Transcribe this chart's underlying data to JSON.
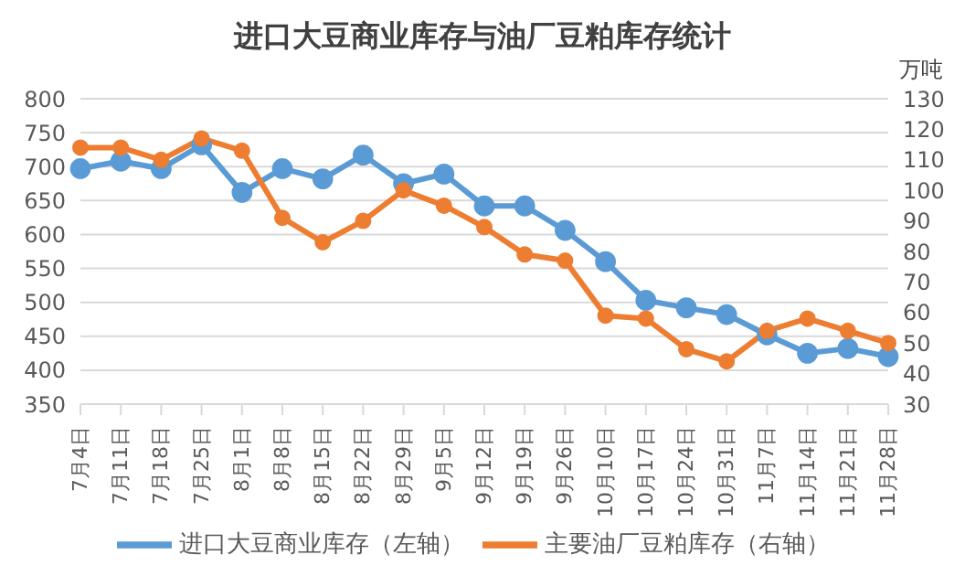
{
  "chart_data": {
    "type": "line",
    "title": "进口大豆商业库存与油厂豆粕库存统计",
    "y2label": "万吨",
    "categories": [
      "7月4日",
      "7月11日",
      "7月18日",
      "7月25日",
      "8月1日",
      "8月8日",
      "8月15日",
      "8月22日",
      "8月29日",
      "9月5日",
      "9月12日",
      "9月19日",
      "9月26日",
      "10月10日",
      "10月17日",
      "10月24日",
      "10月31日",
      "11月7日",
      "11月14日",
      "11月21日",
      "11月28日"
    ],
    "series": [
      {
        "name": "进口大豆商业库存（左轴）",
        "color": "#5b9bd5",
        "values": [
          697,
          708,
          697,
          732,
          662,
          697,
          682,
          717,
          675,
          689,
          642,
          642,
          606,
          560,
          503,
          492,
          482,
          452,
          425,
          432,
          420
        ]
      },
      {
        "name": "主要油厂豆粕库存（右轴）",
        "color": "#ed7d31",
        "axis": "y2",
        "values": [
          114,
          114,
          110,
          117,
          113,
          91,
          83,
          90,
          100,
          95,
          88,
          79,
          77,
          59,
          58,
          48,
          44,
          54,
          58,
          54,
          50
        ]
      }
    ],
    "ylim": [
      350,
      800
    ],
    "yticks": [
      350,
      400,
      450,
      500,
      550,
      600,
      650,
      700,
      750,
      800
    ],
    "y2lim": [
      30,
      130
    ],
    "y2ticks": [
      30,
      40,
      50,
      60,
      70,
      80,
      90,
      100,
      110,
      120,
      130
    ],
    "grid": "y",
    "legend": "bottom",
    "marker": "circle",
    "line_style": "solid"
  }
}
